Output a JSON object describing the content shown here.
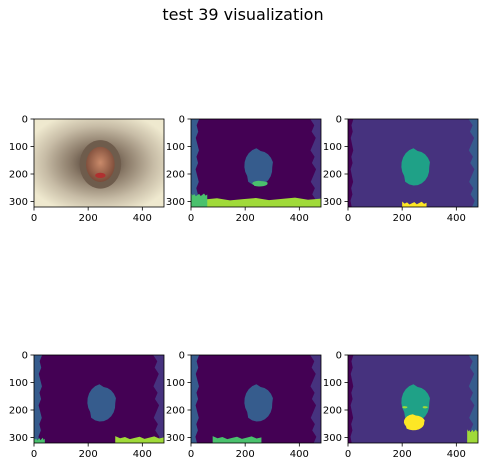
{
  "chart_data": {
    "type": "heatmap",
    "title": "test 39 visualization",
    "xlim": [
      0,
      480
    ],
    "ylim": [
      320,
      0
    ],
    "x_ticks": [
      "0",
      "200",
      "400"
    ],
    "y_ticks": [
      "0",
      "100",
      "200",
      "300"
    ],
    "colormap": [
      "#440154",
      "#46327e",
      "#365c8d",
      "#277f8e",
      "#1fa187",
      "#4ac16d",
      "#a0da39",
      "#fde725"
    ],
    "panels": [
      {
        "kind": "photo",
        "description_hidden": true
      },
      {
        "kind": "segmentation",
        "classes": 5
      },
      {
        "kind": "segmentation",
        "classes": 4
      },
      {
        "kind": "segmentation",
        "classes": 5
      },
      {
        "kind": "segmentation",
        "classes": 5
      },
      {
        "kind": "segmentation",
        "classes": 6
      }
    ]
  }
}
